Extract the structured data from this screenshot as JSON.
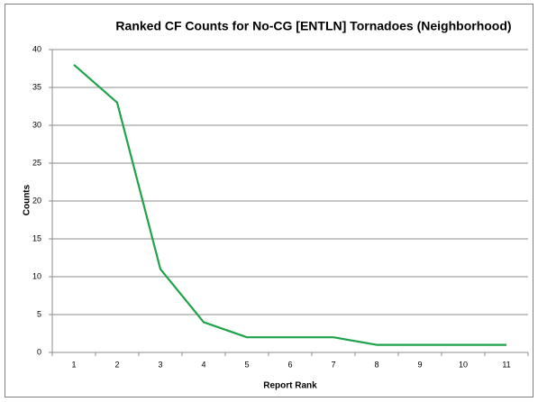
{
  "chart_data": {
    "type": "line",
    "title": "Ranked CF Counts for No-CG [ENTLN] Tornadoes (Neighborhood)",
    "xlabel": "Report Rank",
    "ylabel": "Counts",
    "categories": [
      1,
      2,
      3,
      4,
      5,
      6,
      7,
      8,
      9,
      10,
      11
    ],
    "series": [
      {
        "name": "Counts",
        "color": "#1fa34a",
        "values": [
          38,
          33,
          11,
          4,
          2,
          2,
          2,
          1,
          1,
          1,
          1
        ]
      }
    ],
    "ylim": [
      0,
      40
    ],
    "yticks": [
      0,
      5,
      10,
      15,
      20,
      25,
      30,
      35,
      40
    ],
    "grid": true
  }
}
